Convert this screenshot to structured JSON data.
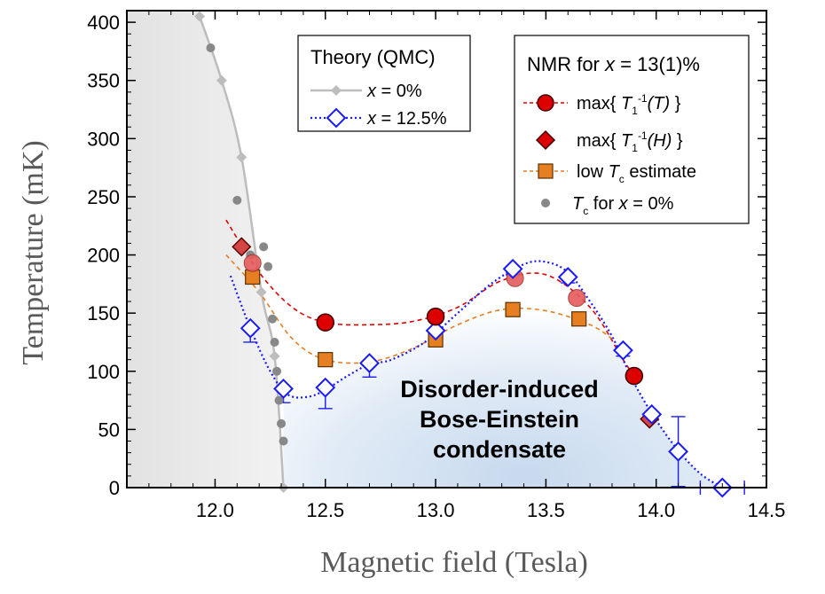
{
  "chart_data": {
    "type": "scatter",
    "xlabel": "Magnetic field (Tesla)",
    "ylabel": "Temperature (mK)",
    "xlim": [
      11.6,
      14.5
    ],
    "ylim": [
      0,
      410
    ],
    "x_ticks": [
      "12.0",
      "12.5",
      "13.0",
      "13.5",
      "14.0",
      "14.5"
    ],
    "y_ticks": [
      "0",
      "50",
      "100",
      "150",
      "200",
      "250",
      "300",
      "350",
      "400"
    ],
    "region_label": [
      "Disorder-induced",
      "Bose-Einstein",
      "condensate"
    ],
    "legend_theory": {
      "title": "Theory (QMC)",
      "items": [
        {
          "var": "x",
          "rest": " = 0%"
        },
        {
          "var": "x",
          "rest": " = 12.5%"
        }
      ]
    },
    "legend_nmr": {
      "title": {
        "pre": "NMR for ",
        "var": "x",
        "rest": " = 13(1)%"
      },
      "items": [
        {
          "pre": "max{ ",
          "var": "T",
          "sub": "1",
          "sup": "-1",
          "arg": "(T)",
          "post": " }"
        },
        {
          "pre": "max{ ",
          "var": "T",
          "sub": "1",
          "sup": "-1",
          "arg": "(H)",
          "post": " }"
        },
        {
          "pre": "low ",
          "var": "T",
          "sub": "c",
          "post": " estimate"
        },
        {
          "var": "T",
          "sub": "c",
          "post": " for ",
          "var2": "x",
          "post2": " = 0%"
        }
      ]
    },
    "series": [
      {
        "key": "qmc_x0",
        "color": "#bdbdbd",
        "marker": "diamond",
        "x": [
          11.93,
          12.03,
          12.12,
          12.21,
          12.27,
          12.31
        ],
        "y": [
          405,
          350,
          284,
          168,
          113,
          0
        ]
      },
      {
        "key": "qmc_x125",
        "color": "#1a1aff",
        "marker": "open-diamond",
        "x": [
          12.16,
          12.31,
          12.5,
          12.7,
          13.0,
          13.35,
          13.6,
          13.85,
          13.98,
          14.1,
          14.3
        ],
        "y": [
          137,
          85,
          86,
          107,
          135,
          188,
          181,
          118,
          63,
          31,
          0
        ],
        "yerr": [
          12,
          12,
          18,
          12,
          10,
          5,
          5,
          5,
          5,
          30,
          0
        ],
        "xerr": [
          0,
          0,
          0,
          0,
          0,
          0,
          0,
          0,
          0,
          0,
          0.1
        ]
      },
      {
        "key": "nmr_maxT",
        "color": "#dd0000",
        "marker": "circle",
        "x": [
          12.5,
          13.0,
          13.9
        ],
        "y": [
          142,
          147,
          96
        ]
      },
      {
        "key": "nmr_maxT_faded",
        "color": "#dd0000",
        "marker": "circle-faded",
        "x": [
          12.17,
          13.36,
          13.64
        ],
        "y": [
          193,
          180,
          163
        ]
      },
      {
        "key": "nmr_maxH",
        "color": "#dd0000",
        "marker": "diamond-filled",
        "x": [
          12.12,
          13.97
        ],
        "y": [
          207,
          59
        ]
      },
      {
        "key": "low_tc",
        "color": "#e67e22",
        "marker": "square",
        "x": [
          12.5,
          12.17,
          13.0,
          13.35,
          13.65
        ],
        "y": [
          110,
          181,
          127,
          153,
          145
        ]
      },
      {
        "key": "tc_x0",
        "color": "#888888",
        "marker": "dot",
        "x": [
          11.98,
          12.1,
          12.16,
          12.22,
          12.24,
          12.26,
          12.27,
          12.28,
          12.29,
          12.3,
          12.31
        ],
        "y": [
          378,
          247,
          200,
          207,
          190,
          145,
          125,
          100,
          75,
          55,
          40
        ]
      }
    ],
    "curves": [
      {
        "key": "fit_maxT",
        "color": "#dd0000",
        "x": [
          12.05,
          12.2,
          12.35,
          12.5,
          12.7,
          12.9,
          13.1,
          13.3,
          13.5,
          13.7,
          13.85,
          13.9
        ],
        "y": [
          230,
          185,
          155,
          142,
          140,
          143,
          155,
          178,
          183,
          155,
          110,
          96
        ]
      },
      {
        "key": "fit_lowTc",
        "color": "#e67e22",
        "x": [
          12.05,
          12.2,
          12.35,
          12.5,
          12.7,
          12.9,
          13.1,
          13.3,
          13.5,
          13.7,
          13.8
        ],
        "y": [
          200,
          168,
          128,
          110,
          108,
          120,
          140,
          153,
          152,
          140,
          128
        ]
      },
      {
        "key": "fit_qmc125",
        "color": "#1a1aff",
        "x": [
          12.07,
          12.16,
          12.25,
          12.33,
          12.42,
          12.5,
          12.6,
          12.7,
          12.8,
          12.95,
          13.1,
          13.25,
          13.4,
          13.5,
          13.6,
          13.7,
          13.8,
          13.9,
          14.0,
          14.1,
          14.2,
          14.3
        ],
        "y": [
          182,
          137,
          100,
          80,
          78,
          84,
          96,
          106,
          110,
          125,
          150,
          175,
          192,
          194,
          185,
          160,
          130,
          90,
          58,
          32,
          12,
          0
        ]
      }
    ],
    "shading": {
      "left_region_color": "#e6e6e6",
      "bec_region_color": "#d6e3f1"
    }
  }
}
